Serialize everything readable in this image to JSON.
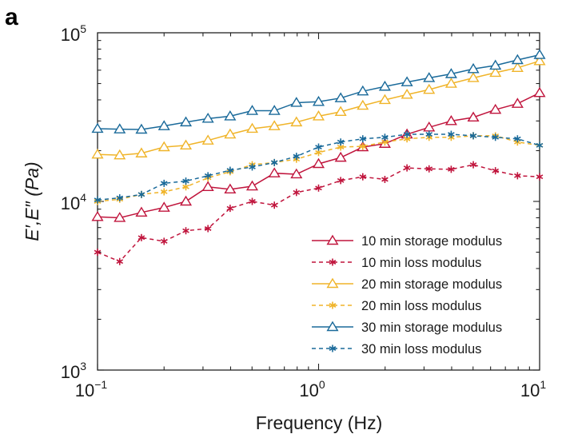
{
  "panel_label": "a",
  "chart_data": {
    "type": "line",
    "xlabel": "Frequency (Hz)",
    "ylabel": "E′,E″ (Pa)",
    "xscale": "log",
    "yscale": "log",
    "xlim": [
      0.1,
      10
    ],
    "ylim": [
      1000,
      100000
    ],
    "xticks": [
      {
        "base": "10",
        "exp": "−1",
        "value": 0.1
      },
      {
        "base": "10",
        "exp": "0",
        "value": 1
      },
      {
        "base": "10",
        "exp": "1",
        "value": 10
      }
    ],
    "yticks": [
      {
        "base": "10",
        "exp": "3",
        "value": 1000
      },
      {
        "base": "10",
        "exp": "4",
        "value": 10000
      },
      {
        "base": "10",
        "exp": "5",
        "value": 100000
      }
    ],
    "grid": false,
    "legend_position": "bottom-right",
    "x": [
      0.1,
      0.126,
      0.158,
      0.2,
      0.251,
      0.316,
      0.398,
      0.501,
      0.631,
      0.794,
      1.0,
      1.259,
      1.585,
      1.995,
      2.512,
      3.162,
      3.981,
      5.012,
      6.31,
      7.943,
      10.0
    ],
    "series": [
      {
        "name": "10 min storage modulus",
        "color": "#c0143c",
        "dash": false,
        "marker": "triangle",
        "values": [
          8100,
          8000,
          8600,
          9200,
          10000,
          12200,
          11800,
          12300,
          14700,
          14500,
          16700,
          18200,
          21000,
          22000,
          25000,
          27500,
          30000,
          31500,
          35000,
          38000,
          44000
        ]
      },
      {
        "name": "10 min loss modulus",
        "color": "#c0143c",
        "dash": true,
        "marker": "asterisk",
        "values": [
          5000,
          4400,
          6100,
          5800,
          6700,
          6900,
          9100,
          10000,
          9500,
          11300,
          12000,
          13300,
          14000,
          13500,
          15800,
          15600,
          15500,
          16500,
          15200,
          14200,
          14000
        ]
      },
      {
        "name": "20 min storage modulus",
        "color": "#f0b429",
        "dash": false,
        "marker": "triangle",
        "values": [
          19000,
          18800,
          19300,
          21000,
          21500,
          23000,
          25000,
          27000,
          28000,
          29500,
          32000,
          34000,
          37000,
          40000,
          43000,
          46000,
          50000,
          54000,
          58000,
          62000,
          68000
        ]
      },
      {
        "name": "20 min loss modulus",
        "color": "#f0b429",
        "dash": true,
        "marker": "asterisk",
        "values": [
          10000,
          10300,
          11000,
          11400,
          12200,
          13800,
          15000,
          16500,
          17000,
          17800,
          19500,
          21000,
          21200,
          22500,
          23500,
          24000,
          24000,
          24500,
          24500,
          22500,
          21500
        ]
      },
      {
        "name": "30 min storage modulus",
        "color": "#1a6a9a",
        "dash": false,
        "marker": "triangle",
        "values": [
          27000,
          26800,
          26700,
          28000,
          29500,
          31000,
          32000,
          34500,
          34500,
          38500,
          39000,
          41000,
          45000,
          48000,
          51000,
          54000,
          57000,
          61000,
          64000,
          69000,
          74000
        ]
      },
      {
        "name": "30 min loss modulus",
        "color": "#1a6a9a",
        "dash": true,
        "marker": "asterisk",
        "values": [
          10200,
          10500,
          11000,
          12800,
          13200,
          14200,
          15300,
          16000,
          17000,
          18500,
          21000,
          22500,
          23500,
          24000,
          25000,
          25000,
          25000,
          24500,
          24000,
          23500,
          21500
        ]
      }
    ]
  }
}
